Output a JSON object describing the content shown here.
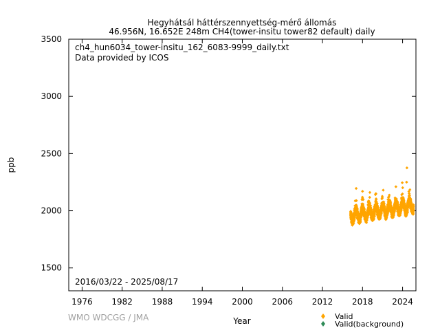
{
  "chart_data": {
    "type": "scatter",
    "title_line1": "Hegyhátsál háttérszennyettség-mérő állomás",
    "title_line2": "46.956N, 16.652E 248m    CH4(tower-insitu tower82 default) daily",
    "file_label": "ch4_hun6034_tower-insitu_162_6083-9999_daily.txt",
    "provider_label": "Data provided by ICOS",
    "date_range_label": "2016/03/22 - 2025/08/17",
    "xlabel": "Year",
    "ylabel": "ppb",
    "xlim": [
      1974,
      2026
    ],
    "ylim": [
      1300,
      3500
    ],
    "x_ticks": [
      1976,
      1982,
      1988,
      1994,
      2000,
      2006,
      2012,
      2018,
      2024
    ],
    "y_ticks": [
      1500,
      2000,
      2500,
      3000,
      3500
    ],
    "grid": false,
    "legend_position": "bottom-right, outside plot",
    "series": [
      {
        "name": "Valid",
        "color": "#ffa500",
        "marker": "diamond",
        "x_start": 2016.22,
        "x_end": 2025.63,
        "baseline_start": 1955,
        "baseline_end": 2050,
        "seasonal_amplitude": 45,
        "spread": 35,
        "outliers": [
          {
            "x": 2017.05,
            "y": 2195
          },
          {
            "x": 2018.0,
            "y": 2170
          },
          {
            "x": 2019.1,
            "y": 2160
          },
          {
            "x": 2020.0,
            "y": 2150
          },
          {
            "x": 2021.1,
            "y": 2180
          },
          {
            "x": 2023.0,
            "y": 2210
          },
          {
            "x": 2023.95,
            "y": 2245
          },
          {
            "x": 2024.6,
            "y": 2250
          },
          {
            "x": 2024.65,
            "y": 2375
          }
        ]
      },
      {
        "name": "Valid(background)",
        "color": "#2e8b57",
        "marker": "diamond",
        "points": []
      }
    ]
  },
  "credit": "WMO WDCGG / JMA",
  "legend": {
    "valid_label": "Valid",
    "background_label": "Valid(background)",
    "valid_icon": "orange-diamond-marker",
    "background_icon": "green-diamond-marker"
  }
}
